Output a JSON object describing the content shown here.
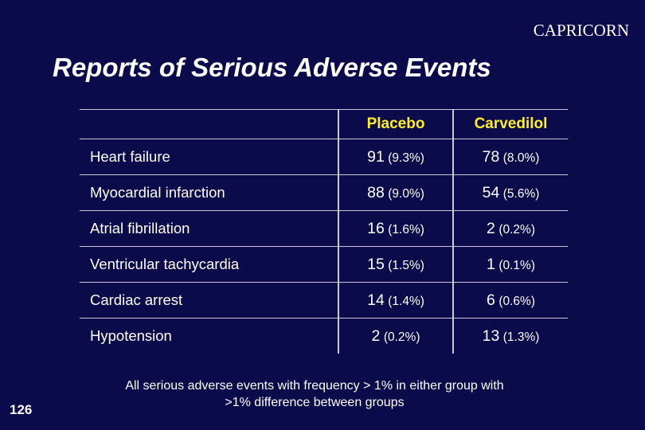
{
  "header": {
    "study_name": "CAPRICORN",
    "title": "Reports of Serious Adverse Events"
  },
  "table": {
    "columns": [
      "",
      "Placebo",
      "Carvedilol"
    ],
    "rows": [
      {
        "event": "Heart failure",
        "placebo_n": "91",
        "placebo_pct": "(9.3%)",
        "carvedilol_n": "78",
        "carvedilol_pct": "(8.0%)"
      },
      {
        "event": "Myocardial infarction",
        "placebo_n": "88",
        "placebo_pct": "(9.0%)",
        "carvedilol_n": "54",
        "carvedilol_pct": "(5.6%)"
      },
      {
        "event": "Atrial fibrillation",
        "placebo_n": "16",
        "placebo_pct": "(1.6%)",
        "carvedilol_n": "2",
        "carvedilol_pct": "(0.2%)"
      },
      {
        "event": "Ventricular tachycardia",
        "placebo_n": "15",
        "placebo_pct": "(1.5%)",
        "carvedilol_n": "1",
        "carvedilol_pct": "(0.1%)"
      },
      {
        "event": "Cardiac arrest",
        "placebo_n": "14",
        "placebo_pct": "(1.4%)",
        "carvedilol_n": "6",
        "carvedilol_pct": "(0.6%)"
      },
      {
        "event": "Hypotension",
        "placebo_n": "2",
        "placebo_pct": "(0.2%)",
        "carvedilol_n": "13",
        "carvedilol_pct": "(1.3%)"
      }
    ]
  },
  "footnote": {
    "line1": "All serious adverse events with frequency > 1% in either group with",
    "line2": ">1% difference between groups"
  },
  "slide_number": "126",
  "colors": {
    "background": "#0b0a4a",
    "header_text": "#ffee22",
    "text": "#ffffff",
    "grid": "#c9c9d8"
  }
}
